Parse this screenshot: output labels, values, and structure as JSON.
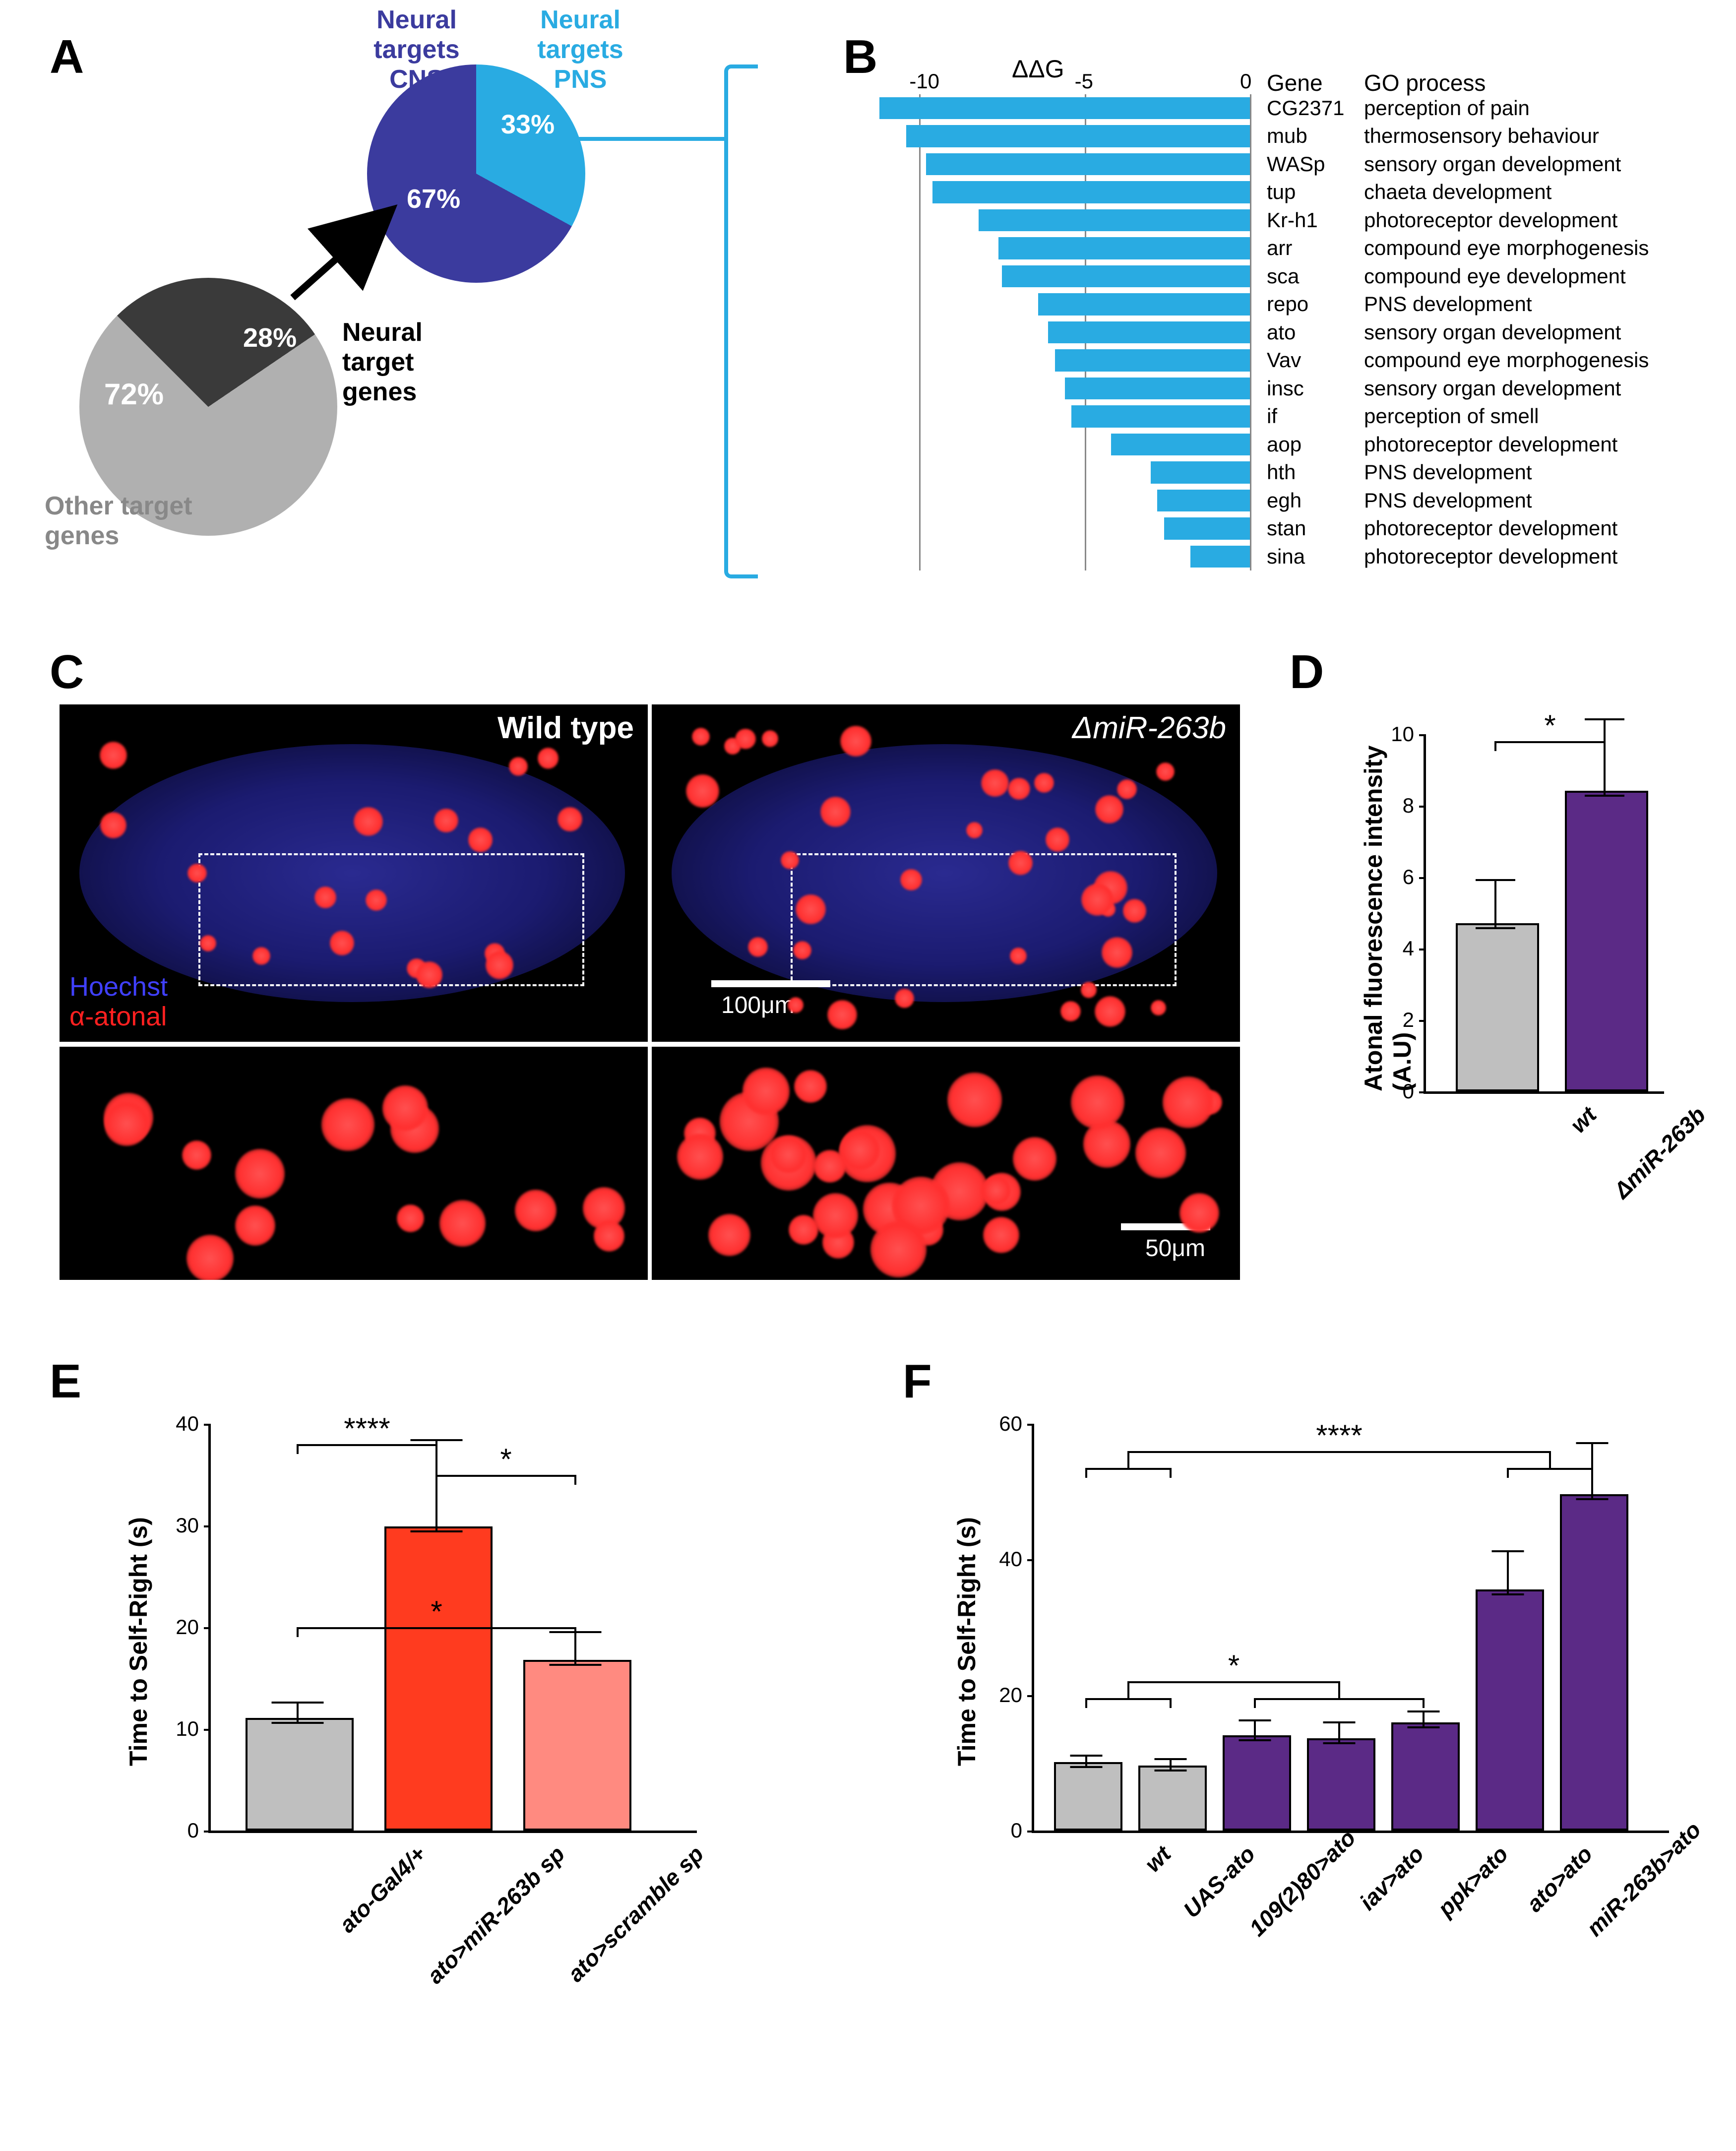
{
  "colors": {
    "pie1_neural": "#3a3a3a",
    "pie1_other": "#b0b0b0",
    "pie2_cns": "#3b3b9e",
    "pie2_pns": "#29abe2",
    "bar_cyan": "#29abe2",
    "bar_grey": "#bfbfbf",
    "bar_purple": "#5b2a86",
    "bar_red": "#ff3b1f",
    "bar_pink": "#ff8a80"
  },
  "panelA": {
    "letter": "A",
    "pie_main": {
      "slices": [
        {
          "label": "Other target genes",
          "pct": 72,
          "value_txt": "72%",
          "color_key": "pie1_other",
          "lbl_color": "#888"
        },
        {
          "label": "Neural target genes",
          "pct": 28,
          "value_txt": "28%",
          "color_key": "pie1_neural",
          "lbl_color": "#000"
        }
      ]
    },
    "pie_sub": {
      "slices": [
        {
          "label": "Neural targets CNS",
          "pct": 67,
          "value_txt": "67%",
          "color_key": "pie2_cns",
          "lbl_color": "#3b3b9e"
        },
        {
          "label": "Neural targets PNS",
          "pct": 33,
          "value_txt": "33%",
          "color_key": "pie2_pns",
          "lbl_color": "#29abe2"
        }
      ]
    }
  },
  "panelB": {
    "letter": "B",
    "x_title": "ΔΔG",
    "x_min": -12,
    "x_max": 0,
    "ticks": [
      -10,
      -5,
      0
    ],
    "rows": [
      {
        "gene": "CG2371",
        "go": "perception of pain",
        "val": -11.2
      },
      {
        "gene": "mub",
        "go": "thermosensory behaviour",
        "val": -10.4
      },
      {
        "gene": "WASp",
        "go": "sensory organ development",
        "val": -9.8
      },
      {
        "gene": "tup",
        "go": "chaeta development",
        "val": -9.6
      },
      {
        "gene": "Kr-h1",
        "go": "photoreceptor development",
        "val": -8.2
      },
      {
        "gene": "arr",
        "go": "compound eye morphogenesis",
        "val": -7.6
      },
      {
        "gene": "sca",
        "go": "compound eye development",
        "val": -7.5
      },
      {
        "gene": "repo",
        "go": "PNS development",
        "val": -6.4
      },
      {
        "gene": "ato",
        "go": "sensory organ development",
        "val": -6.1
      },
      {
        "gene": "Vav",
        "go": "compound eye morphogenesis",
        "val": -5.9
      },
      {
        "gene": "insc",
        "go": "sensory organ development",
        "val": -5.6
      },
      {
        "gene": "if",
        "go": "perception of smell",
        "val": -5.4
      },
      {
        "gene": "aop",
        "go": "photoreceptor development",
        "val": -4.2
      },
      {
        "gene": "hth",
        "go": "PNS development",
        "val": -3.0
      },
      {
        "gene": "egh",
        "go": "PNS development",
        "val": -2.8
      },
      {
        "gene": "stan",
        "go": "photoreceptor development",
        "val": -2.6
      },
      {
        "gene": "sina",
        "go": "photoreceptor development",
        "val": -1.8
      }
    ],
    "col_gene_header": "Gene",
    "col_go_header": "GO process"
  },
  "panelC": {
    "letter": "C",
    "left_title": "Wild type",
    "right_title": "ΔmiR-263b",
    "stain1": "Hoechst",
    "stain2": "α-atonal",
    "scale_top": "100μm",
    "scale_bot": "50μm"
  },
  "panelD": {
    "letter": "D",
    "y_title": "Atonal fluorescence intensity (A.U)",
    "y_max": 10,
    "y_ticks": [
      0,
      2,
      4,
      6,
      8,
      10
    ],
    "bars": [
      {
        "label": "wt",
        "val": 4.6,
        "err": 0.7,
        "color_key": "bar_grey"
      },
      {
        "label": "ΔmiR-263b",
        "val": 8.3,
        "err": 1.1,
        "color_key": "bar_purple"
      }
    ],
    "sig": [
      {
        "from": 0,
        "to": 1,
        "level": 9.8,
        "stars": "*"
      }
    ]
  },
  "panelE": {
    "letter": "E",
    "y_title": "Time to Self-Right (s)",
    "y_max": 40,
    "y_ticks": [
      0,
      10,
      20,
      30,
      40
    ],
    "bars": [
      {
        "label": "ato-Gal4/+",
        "val": 10.7,
        "err": 1.1,
        "color_key": "bar_grey"
      },
      {
        "label": "ato>miR-263b sp",
        "val": 29.5,
        "err": 4.6,
        "color_key": "bar_red"
      },
      {
        "label": "ato>scramble sp",
        "val": 16.4,
        "err": 1.7,
        "color_key": "bar_pink"
      }
    ],
    "sig": [
      {
        "from": 0,
        "to": 1,
        "level": 38,
        "stars": "****"
      },
      {
        "from": 1,
        "to": 2,
        "level": 35,
        "stars": "*"
      },
      {
        "from": 0,
        "to": 2,
        "level": 20,
        "stars": "*"
      }
    ]
  },
  "panelF": {
    "letter": "F",
    "y_title": "Time to Self-Right (s)",
    "y_max": 60,
    "y_ticks": [
      0,
      20,
      40,
      60
    ],
    "bars": [
      {
        "label": "wt",
        "val": 9.5,
        "err": 1.0,
        "color_key": "bar_grey"
      },
      {
        "label": "UAS-ato",
        "val": 9.0,
        "err": 1.0,
        "color_key": "bar_grey"
      },
      {
        "label": "109(2)80>ato",
        "val": 13.5,
        "err": 1.6,
        "color_key": "bar_purple"
      },
      {
        "label": "iav>ato",
        "val": 13.0,
        "err": 1.7,
        "color_key": "bar_purple"
      },
      {
        "label": "ppk>ato",
        "val": 15.4,
        "err": 1.3,
        "color_key": "bar_purple"
      },
      {
        "label": "ato>ato",
        "val": 35.0,
        "err": 3.3,
        "color_key": "bar_purple"
      },
      {
        "label": "miR-263b>ato",
        "val": 49.0,
        "err": 4.3,
        "color_key": "bar_purple"
      }
    ],
    "sig": [
      {
        "group_from": [
          0,
          1
        ],
        "group_to": [
          2,
          3,
          4
        ],
        "level": 22,
        "stars": "*"
      },
      {
        "group_from": [
          0,
          1
        ],
        "group_to": [
          5,
          6
        ],
        "level": 56,
        "stars": "****"
      }
    ]
  }
}
